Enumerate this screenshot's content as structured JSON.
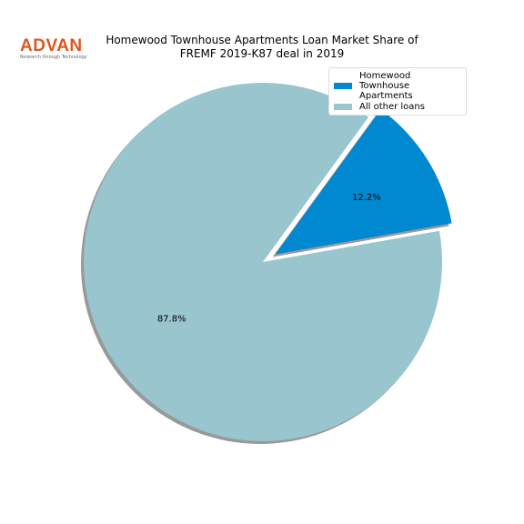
{
  "logo": {
    "name": "ADVAN",
    "tagline": "Research through Technology"
  },
  "chart_data": {
    "type": "pie",
    "title": "Homewood Townhouse Apartments Loan Market Share of\nFREMF 2019-K87 deal in 2019",
    "categories": [
      "Homewood\nTownhouse Apartments",
      "All other loans"
    ],
    "values": [
      12.2,
      87.8
    ],
    "value_labels": [
      "12.2%",
      "87.8%"
    ],
    "colors": [
      "#0088d1",
      "#99c5cf"
    ],
    "explode": [
      true,
      false
    ],
    "legend": "upper right"
  }
}
